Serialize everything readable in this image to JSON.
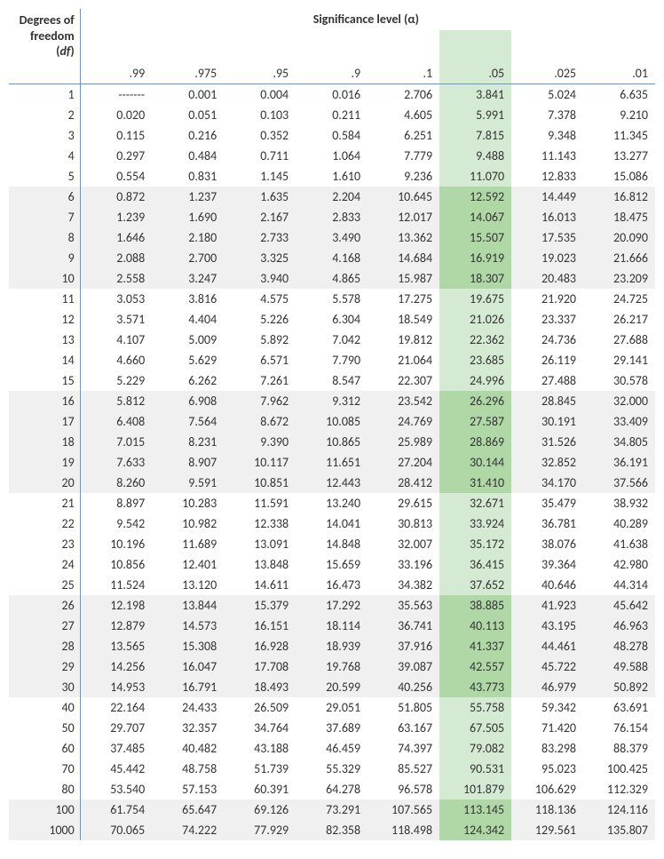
{
  "title": "Significance level (α)",
  "df_label_l1": "Degrees of",
  "df_label_l2": "freedom",
  "df_label_l3": "(df)",
  "alphas": [
    ".99",
    ".975",
    ".95",
    ".9",
    ".1",
    ".05",
    ".025",
    ".01"
  ],
  "highlight_col_index": 5,
  "stripe_bands": [
    [
      5,
      9
    ],
    [
      15,
      19
    ],
    [
      25,
      29
    ],
    [
      35,
      36
    ]
  ],
  "rows": [
    {
      "df": "1",
      "v": [
        "-------",
        "0.001",
        "0.004",
        "0.016",
        "2.706",
        "3.841",
        "5.024",
        "6.635"
      ]
    },
    {
      "df": "2",
      "v": [
        "0.020",
        "0.051",
        "0.103",
        "0.211",
        "4.605",
        "5.991",
        "7.378",
        "9.210"
      ]
    },
    {
      "df": "3",
      "v": [
        "0.115",
        "0.216",
        "0.352",
        "0.584",
        "6.251",
        "7.815",
        "9.348",
        "11.345"
      ]
    },
    {
      "df": "4",
      "v": [
        "0.297",
        "0.484",
        "0.711",
        "1.064",
        "7.779",
        "9.488",
        "11.143",
        "13.277"
      ]
    },
    {
      "df": "5",
      "v": [
        "0.554",
        "0.831",
        "1.145",
        "1.610",
        "9.236",
        "11.070",
        "12.833",
        "15.086"
      ]
    },
    {
      "df": "6",
      "v": [
        "0.872",
        "1.237",
        "1.635",
        "2.204",
        "10.645",
        "12.592",
        "14.449",
        "16.812"
      ]
    },
    {
      "df": "7",
      "v": [
        "1.239",
        "1.690",
        "2.167",
        "2.833",
        "12.017",
        "14.067",
        "16.013",
        "18.475"
      ]
    },
    {
      "df": "8",
      "v": [
        "1.646",
        "2.180",
        "2.733",
        "3.490",
        "13.362",
        "15.507",
        "17.535",
        "20.090"
      ]
    },
    {
      "df": "9",
      "v": [
        "2.088",
        "2.700",
        "3.325",
        "4.168",
        "14.684",
        "16.919",
        "19.023",
        "21.666"
      ]
    },
    {
      "df": "10",
      "v": [
        "2.558",
        "3.247",
        "3.940",
        "4.865",
        "15.987",
        "18.307",
        "20.483",
        "23.209"
      ]
    },
    {
      "df": "11",
      "v": [
        "3.053",
        "3.816",
        "4.575",
        "5.578",
        "17.275",
        "19.675",
        "21.920",
        "24.725"
      ]
    },
    {
      "df": "12",
      "v": [
        "3.571",
        "4.404",
        "5.226",
        "6.304",
        "18.549",
        "21.026",
        "23.337",
        "26.217"
      ]
    },
    {
      "df": "13",
      "v": [
        "4.107",
        "5.009",
        "5.892",
        "7.042",
        "19.812",
        "22.362",
        "24.736",
        "27.688"
      ]
    },
    {
      "df": "14",
      "v": [
        "4.660",
        "5.629",
        "6.571",
        "7.790",
        "21.064",
        "23.685",
        "26.119",
        "29.141"
      ]
    },
    {
      "df": "15",
      "v": [
        "5.229",
        "6.262",
        "7.261",
        "8.547",
        "22.307",
        "24.996",
        "27.488",
        "30.578"
      ]
    },
    {
      "df": "16",
      "v": [
        "5.812",
        "6.908",
        "7.962",
        "9.312",
        "23.542",
        "26.296",
        "28.845",
        "32.000"
      ]
    },
    {
      "df": "17",
      "v": [
        "6.408",
        "7.564",
        "8.672",
        "10.085",
        "24.769",
        "27.587",
        "30.191",
        "33.409"
      ]
    },
    {
      "df": "18",
      "v": [
        "7.015",
        "8.231",
        "9.390",
        "10.865",
        "25.989",
        "28.869",
        "31.526",
        "34.805"
      ]
    },
    {
      "df": "19",
      "v": [
        "7.633",
        "8.907",
        "10.117",
        "11.651",
        "27.204",
        "30.144",
        "32.852",
        "36.191"
      ]
    },
    {
      "df": "20",
      "v": [
        "8.260",
        "9.591",
        "10.851",
        "12.443",
        "28.412",
        "31.410",
        "34.170",
        "37.566"
      ]
    },
    {
      "df": "21",
      "v": [
        "8.897",
        "10.283",
        "11.591",
        "13.240",
        "29.615",
        "32.671",
        "35.479",
        "38.932"
      ]
    },
    {
      "df": "22",
      "v": [
        "9.542",
        "10.982",
        "12.338",
        "14.041",
        "30.813",
        "33.924",
        "36.781",
        "40.289"
      ]
    },
    {
      "df": "23",
      "v": [
        "10.196",
        "11.689",
        "13.091",
        "14.848",
        "32.007",
        "35.172",
        "38.076",
        "41.638"
      ]
    },
    {
      "df": "24",
      "v": [
        "10.856",
        "12.401",
        "13.848",
        "15.659",
        "33.196",
        "36.415",
        "39.364",
        "42.980"
      ]
    },
    {
      "df": "25",
      "v": [
        "11.524",
        "13.120",
        "14.611",
        "16.473",
        "34.382",
        "37.652",
        "40.646",
        "44.314"
      ]
    },
    {
      "df": "26",
      "v": [
        "12.198",
        "13.844",
        "15.379",
        "17.292",
        "35.563",
        "38.885",
        "41.923",
        "45.642"
      ]
    },
    {
      "df": "27",
      "v": [
        "12.879",
        "14.573",
        "16.151",
        "18.114",
        "36.741",
        "40.113",
        "43.195",
        "46.963"
      ]
    },
    {
      "df": "28",
      "v": [
        "13.565",
        "15.308",
        "16.928",
        "18.939",
        "37.916",
        "41.337",
        "44.461",
        "48.278"
      ]
    },
    {
      "df": "29",
      "v": [
        "14.256",
        "16.047",
        "17.708",
        "19.768",
        "39.087",
        "42.557",
        "45.722",
        "49.588"
      ]
    },
    {
      "df": "30",
      "v": [
        "14.953",
        "16.791",
        "18.493",
        "20.599",
        "40.256",
        "43.773",
        "46.979",
        "50.892"
      ]
    },
    {
      "df": "40",
      "v": [
        "22.164",
        "24.433",
        "26.509",
        "29.051",
        "51.805",
        "55.758",
        "59.342",
        "63.691"
      ]
    },
    {
      "df": "50",
      "v": [
        "29.707",
        "32.357",
        "34.764",
        "37.689",
        "63.167",
        "67.505",
        "71.420",
        "76.154"
      ]
    },
    {
      "df": "60",
      "v": [
        "37.485",
        "40.482",
        "43.188",
        "46.459",
        "74.397",
        "79.082",
        "83.298",
        "88.379"
      ]
    },
    {
      "df": "70",
      "v": [
        "45.442",
        "48.758",
        "51.739",
        "55.329",
        "85.527",
        "90.531",
        "95.023",
        "100.425"
      ]
    },
    {
      "df": "80",
      "v": [
        "53.540",
        "57.153",
        "60.391",
        "64.278",
        "96.578",
        "101.879",
        "106.629",
        "112.329"
      ]
    },
    {
      "df": "100",
      "v": [
        "61.754",
        "65.647",
        "69.126",
        "73.291",
        "107.565",
        "113.145",
        "118.136",
        "124.116"
      ]
    },
    {
      "df": "1000",
      "v": [
        "70.065",
        "74.222",
        "77.929",
        "82.358",
        "118.498",
        "124.342",
        "129.561",
        "135.807"
      ]
    }
  ],
  "colors": {
    "border": "#5b9bd5",
    "stripe": "#f0f0f0",
    "highlight": "#d5ead2",
    "highlight_strong": "#b0d8a7",
    "background": "#ffffff",
    "text": "#333333"
  },
  "font": {
    "family": "Calibri",
    "size_pt": 14,
    "header_weight": "bold"
  }
}
